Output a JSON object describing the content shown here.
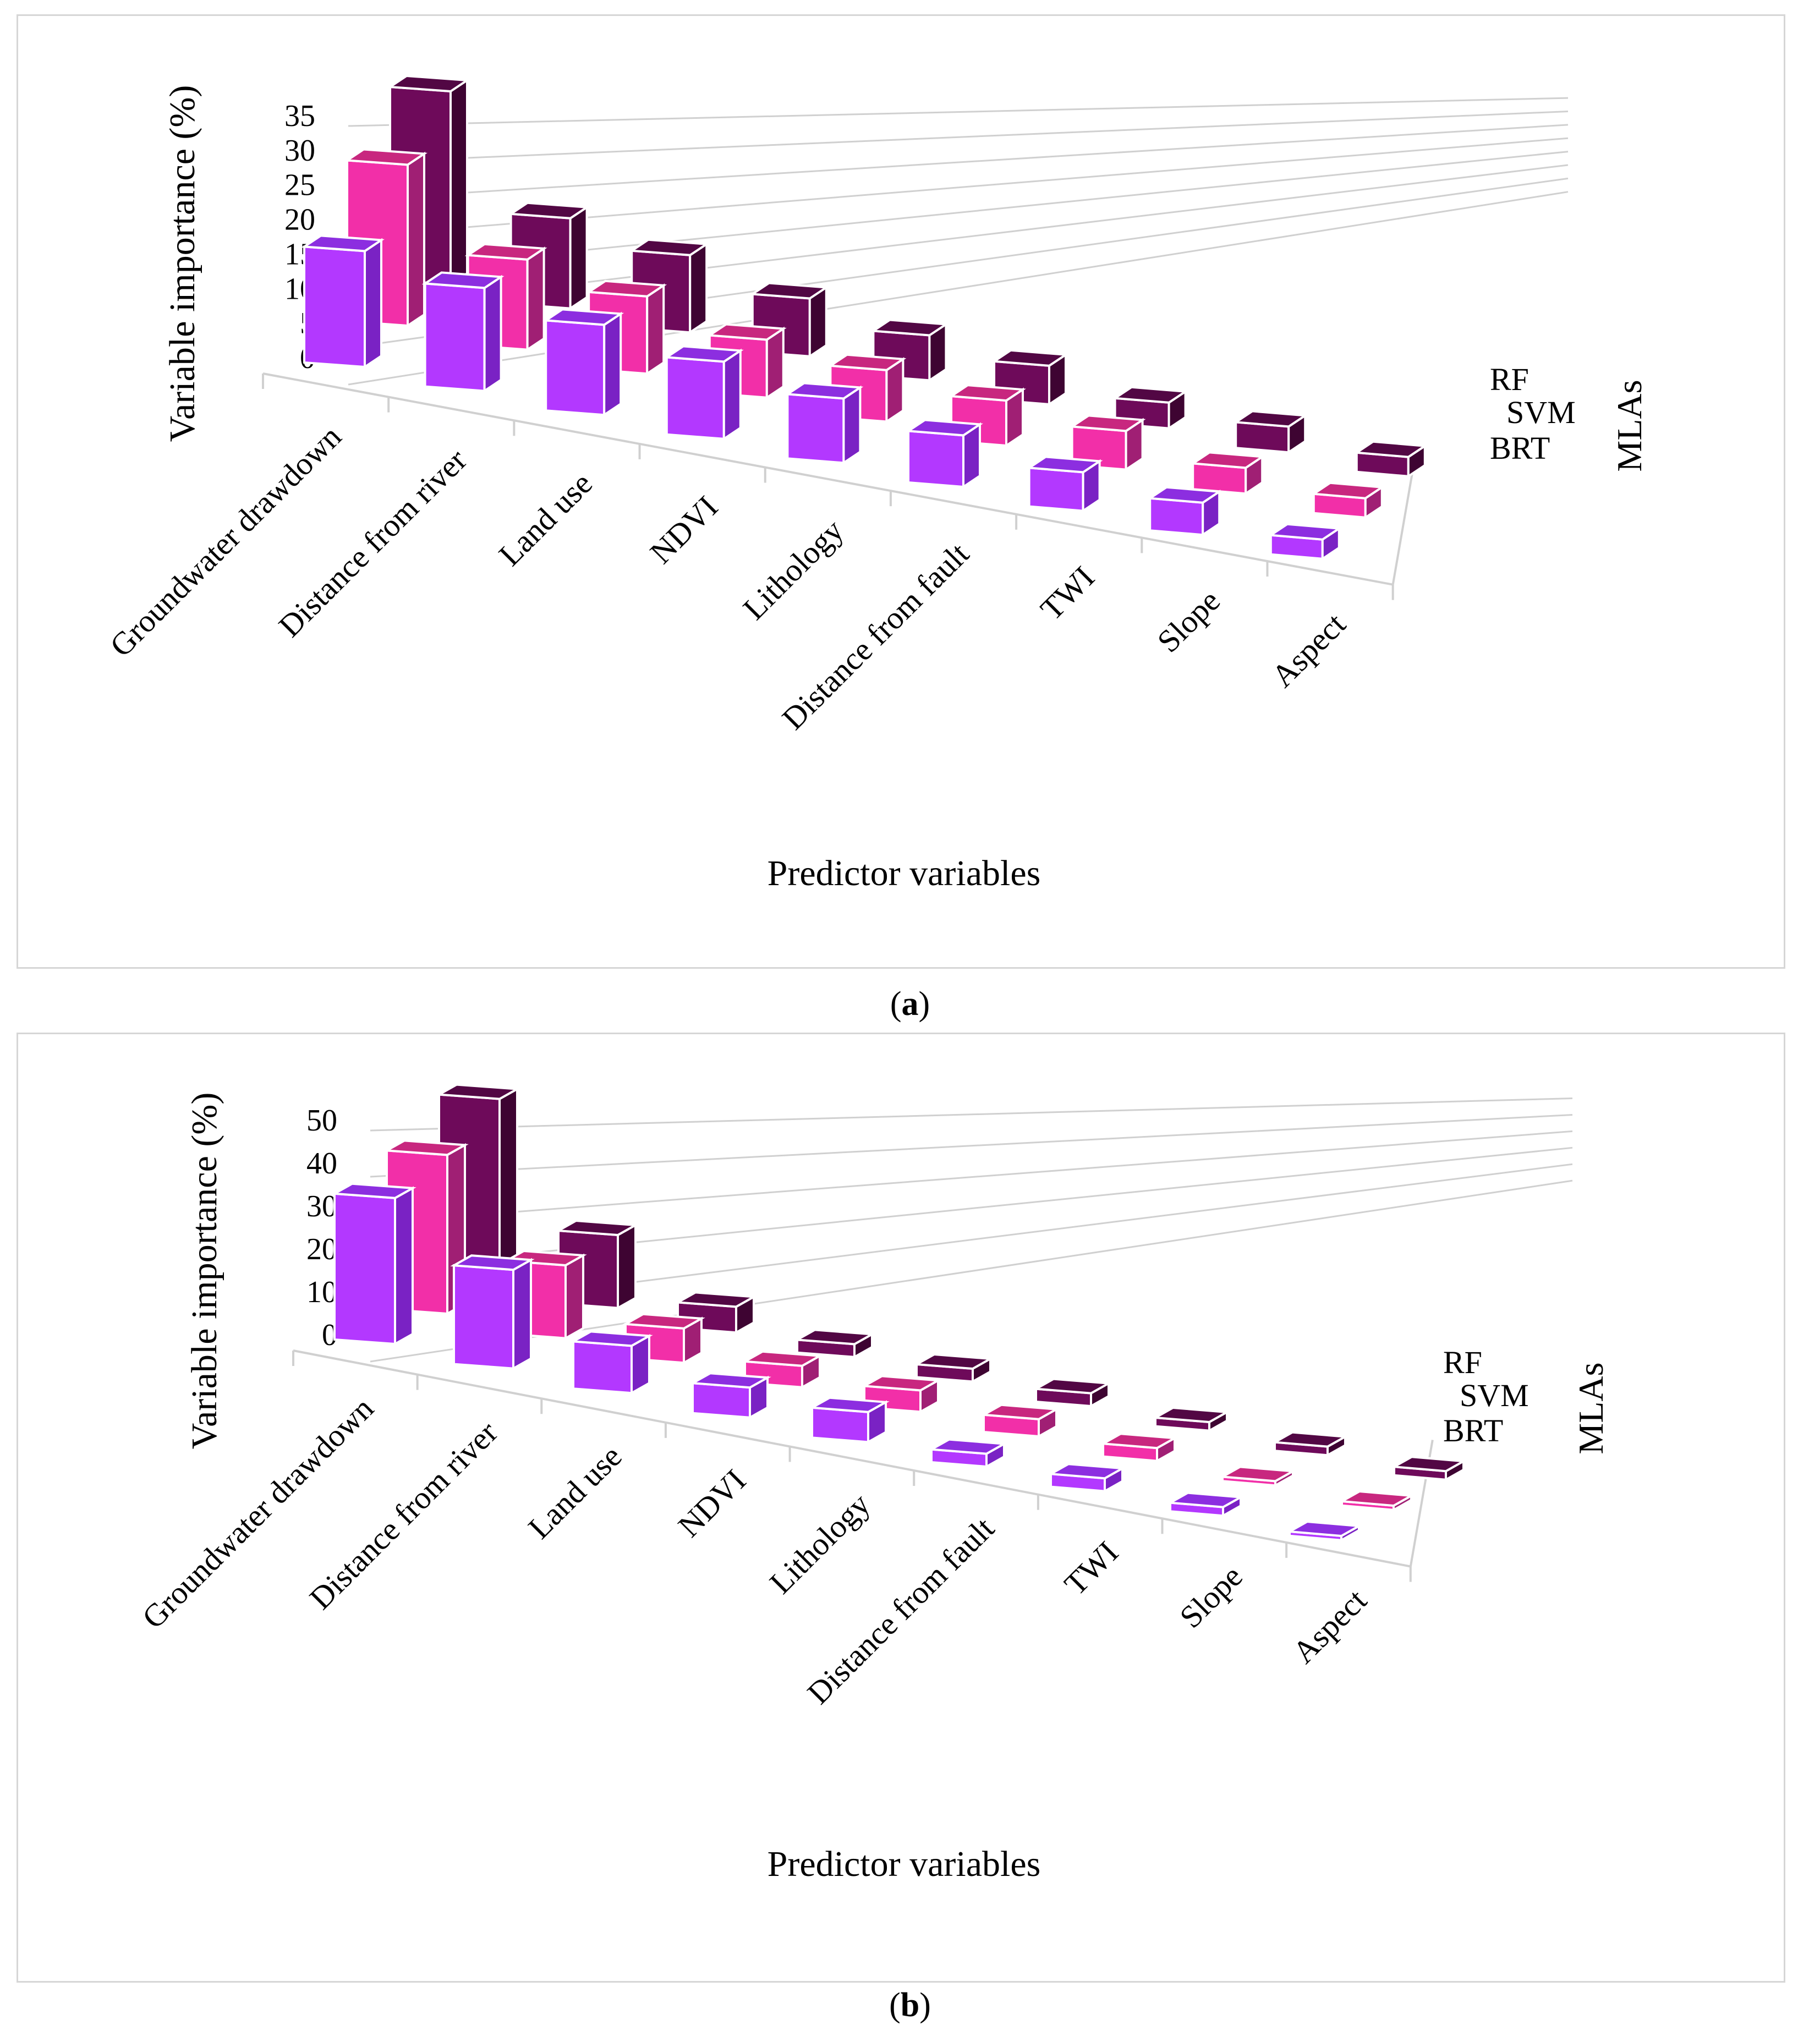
{
  "colors": {
    "BRT": {
      "front": "#b338ff",
      "side": "#7a22c4",
      "top": "#8c2ee0"
    },
    "SVM": {
      "front": "#f22fa8",
      "side": "#a01f74",
      "top": "#c8277f"
    },
    "RF": {
      "front": "#6e0a5a",
      "side": "#3e0432",
      "top": "#520744"
    },
    "grid": "#d0d0d0"
  },
  "captions": {
    "a": "a",
    "b": "b"
  },
  "chart_data": [
    {
      "id": "a",
      "type": "bar",
      "title": "",
      "xlabel": "Predictor variables",
      "ylabel": "Variable importance  (%)",
      "zlabel": "MLAs",
      "ylim": [
        0,
        35
      ],
      "yticks": [
        "35",
        "30",
        "25",
        "20",
        "15",
        "10",
        "5",
        "0"
      ],
      "categories": [
        "Groundwater drawdown",
        "Distance from river",
        "Land use",
        "NDVI",
        "Lithology",
        "Distance from fault",
        "TWI",
        "Slope",
        "Aspect"
      ],
      "series": [
        {
          "name": "BRT",
          "values": [
            18,
            16,
            14,
            12,
            10,
            8,
            6,
            5,
            3
          ]
        },
        {
          "name": "SVM",
          "values": [
            25,
            14,
            12,
            9,
            8,
            7,
            6,
            4,
            3
          ]
        },
        {
          "name": "RF",
          "values": [
            30,
            14,
            12,
            9,
            7,
            6,
            4,
            4,
            3
          ]
        }
      ]
    },
    {
      "id": "b",
      "type": "bar",
      "title": "",
      "xlabel": "Predictor variables",
      "ylabel": "Variable importance  (%)",
      "zlabel": "MLAs",
      "ylim": [
        0,
        50
      ],
      "yticks": [
        "50",
        "40",
        "30",
        "20",
        "10",
        "0"
      ],
      "categories": [
        "Groundwater drawdown",
        "Distance from river",
        "Land use",
        "NDVI",
        "Lithology",
        "Distance from fault",
        "TWI",
        "Slope",
        "Aspect"
      ],
      "series": [
        {
          "name": "BRT",
          "values": [
            34,
            23,
            11,
            7,
            7,
            3,
            3,
            2,
            1
          ]
        },
        {
          "name": "SVM",
          "values": [
            37,
            17,
            8,
            5,
            5,
            4,
            3,
            1,
            1
          ]
        },
        {
          "name": "RF",
          "values": [
            43,
            17,
            6,
            3,
            3,
            3,
            2,
            2,
            2
          ]
        }
      ]
    }
  ]
}
